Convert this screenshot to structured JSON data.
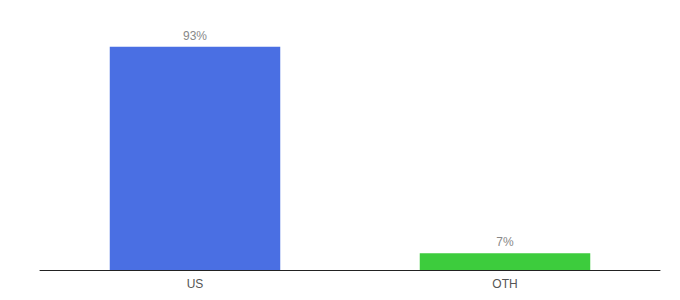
{
  "chart_data": {
    "type": "bar",
    "categories": [
      "US",
      "OTH"
    ],
    "values": [
      93,
      7
    ],
    "value_labels": [
      "93%",
      "7%"
    ],
    "colors": [
      "#4a6fe3",
      "#3dcc3d"
    ],
    "ylim": [
      0,
      100
    ],
    "data_labels": true,
    "tick_labels": "x",
    "grid": false
  }
}
